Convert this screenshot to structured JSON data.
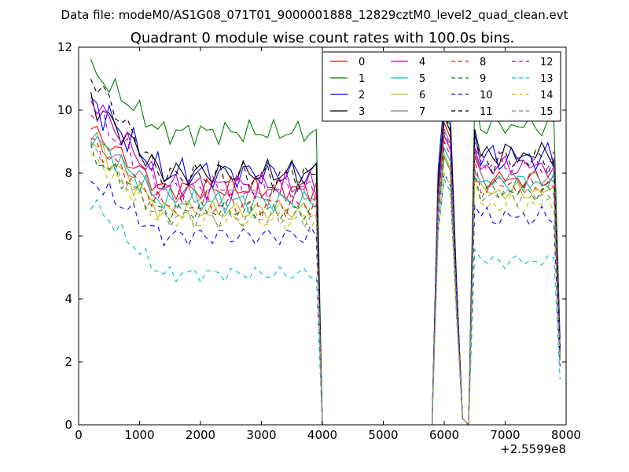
{
  "chart_data": {
    "type": "line",
    "suptitle": "Data file: modeM0/AS1G08_071T01_9000001888_12829cztM0_level2_quad_clean.evt",
    "title": "Quadrant 0 module wise count rates with 100.0s bins.",
    "xlabel": "",
    "ylabel": "",
    "x_offset_label": "+2.5599e8",
    "xlim": [
      0,
      8000
    ],
    "ylim": [
      0,
      12
    ],
    "xticks": [
      0,
      1000,
      2000,
      3000,
      4000,
      5000,
      6000,
      7000,
      8000
    ],
    "yticks": [
      0,
      2,
      4,
      6,
      8,
      10,
      12
    ],
    "xtick_labels": [
      "0",
      "1000",
      "2000",
      "3000",
      "4000",
      "5000",
      "6000",
      "7000",
      "8000"
    ],
    "ytick_labels": [
      "0",
      "2",
      "4",
      "6",
      "8",
      "10",
      "12"
    ],
    "legend_position": "top-right",
    "segments": {
      "seg1_x": [
        200,
        3900
      ],
      "drop_x": [
        3900,
        4000,
        5800
      ],
      "peak_x": [
        5800,
        5900,
        6000,
        6100,
        6200,
        6300,
        6400
      ],
      "seg2_x": [
        6500,
        7900
      ]
    },
    "series": [
      {
        "name": "0",
        "color": "#ff0000",
        "dash": false,
        "start": 9.4,
        "level": 7.5,
        "peak": 9.6,
        "late": 7.8,
        "end": 7.3,
        "jitter": 0.35
      },
      {
        "name": "1",
        "color": "#008000",
        "dash": false,
        "start": 11.3,
        "level": 9.3,
        "peak": 10.0,
        "late": 9.5,
        "end": 9.1,
        "jitter": 0.35
      },
      {
        "name": "2",
        "color": "#0000ff",
        "dash": false,
        "start": 10.3,
        "level": 8.0,
        "peak": 10.4,
        "late": 8.5,
        "end": 8.2,
        "jitter": 0.5
      },
      {
        "name": "3",
        "color": "#000000",
        "dash": false,
        "start": 10.3,
        "level": 8.0,
        "peak": 9.8,
        "late": 8.6,
        "end": 7.6,
        "jitter": 0.45
      },
      {
        "name": "4",
        "color": "#bf00bf",
        "dash": false,
        "start": 10.4,
        "level": 7.6,
        "peak": 9.2,
        "late": 8.2,
        "end": 7.9,
        "jitter": 0.4
      },
      {
        "name": "5",
        "color": "#00bfbf",
        "dash": false,
        "start": 9.2,
        "level": 7.1,
        "peak": 8.8,
        "late": 7.7,
        "end": 7.2,
        "jitter": 0.35
      },
      {
        "name": "6",
        "color": "#bfbf00",
        "dash": false,
        "start": 9.0,
        "level": 6.8,
        "peak": 8.6,
        "late": 7.4,
        "end": 6.8,
        "jitter": 0.35
      },
      {
        "name": "7",
        "color": "#808080",
        "dash": false,
        "start": 9.1,
        "level": 7.3,
        "peak": 9.4,
        "late": 7.8,
        "end": 7.4,
        "jitter": 0.4
      },
      {
        "name": "8",
        "color": "#ff0000",
        "dash": true,
        "start": 9.0,
        "level": 7.0,
        "peak": 9.0,
        "late": 7.6,
        "end": 7.1,
        "jitter": 0.35
      },
      {
        "name": "9",
        "color": "#008000",
        "dash": true,
        "start": 8.6,
        "level": 6.8,
        "peak": 8.5,
        "late": 7.4,
        "end": 6.8,
        "jitter": 0.3
      },
      {
        "name": "10",
        "color": "#0000ff",
        "dash": true,
        "start": 7.8,
        "level": 6.0,
        "peak": 8.0,
        "late": 6.6,
        "end": 6.2,
        "jitter": 0.35
      },
      {
        "name": "11",
        "color": "#000000",
        "dash": true,
        "start": 11.1,
        "level": 7.9,
        "peak": 9.9,
        "late": 8.4,
        "end": 7.8,
        "jitter": 0.45
      },
      {
        "name": "12",
        "color": "#bf00bf",
        "dash": true,
        "start": 10.0,
        "level": 7.5,
        "peak": 9.3,
        "late": 8.3,
        "end": 7.8,
        "jitter": 0.4
      },
      {
        "name": "13",
        "color": "#00bfbf",
        "dash": true,
        "start": 7.1,
        "level": 4.8,
        "peak": 7.8,
        "late": 5.2,
        "end": 4.8,
        "jitter": 0.25
      },
      {
        "name": "14",
        "color": "#bfbf00",
        "dash": true,
        "start": 8.5,
        "level": 6.5,
        "peak": 8.0,
        "late": 7.0,
        "end": 6.8,
        "jitter": 0.35
      },
      {
        "name": "15",
        "color": "#808080",
        "dash": true,
        "start": 8.8,
        "level": 6.6,
        "peak": 8.5,
        "late": 7.3,
        "end": 6.9,
        "jitter": 0.35
      }
    ]
  }
}
